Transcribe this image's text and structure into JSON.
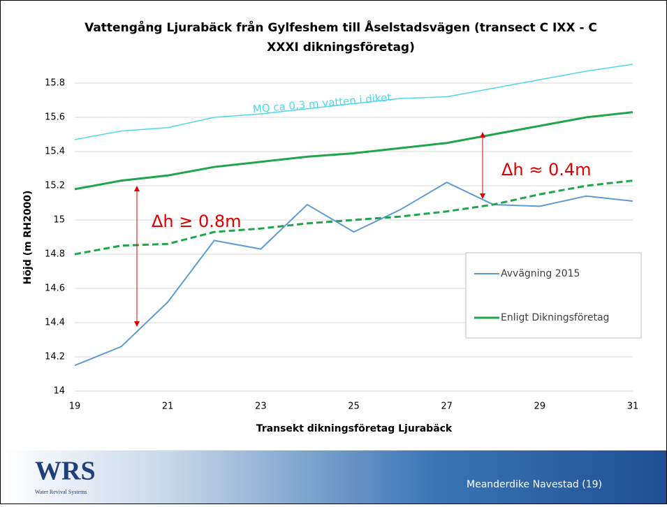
{
  "chart_data": {
    "type": "line",
    "title_lines": [
      "Vattengång Ljurabäck från Gylfeshem till Åselstadsvägen (transect C IXX - C",
      "XXXI dikningsföretag)"
    ],
    "x_label": "Transekt dikningsföretag Ljurabäck",
    "y_label": "Höjd (m RH2000)",
    "x": [
      19,
      20,
      21,
      22,
      23,
      24,
      25,
      26,
      27,
      28,
      29,
      30,
      31
    ],
    "series": [
      {
        "name": "Avvägning 2015",
        "color": "#5b9bd5",
        "width": 2,
        "values": [
          14.15,
          14.26,
          14.52,
          14.88,
          14.83,
          15.09,
          14.93,
          15.06,
          15.22,
          15.09,
          15.08,
          15.14,
          15.11
        ]
      },
      {
        "name": "Enligt Dikningsföretag",
        "color": "#1fa64c",
        "width": 3,
        "values": [
          15.18,
          15.23,
          15.26,
          15.31,
          15.34,
          15.37,
          15.39,
          15.42,
          15.45,
          15.5,
          15.55,
          15.6,
          15.63
        ]
      },
      {
        "color": "#1fa64c",
        "width": 3,
        "dashed": true,
        "values": [
          14.8,
          14.85,
          14.86,
          14.93,
          14.95,
          14.98,
          15.0,
          15.02,
          15.05,
          15.09,
          15.15,
          15.2,
          15.23
        ]
      },
      {
        "color": "#4fd8e8",
        "width": 1.5,
        "values": [
          15.47,
          15.52,
          15.54,
          15.6,
          15.62,
          15.65,
          15.68,
          15.71,
          15.72,
          15.77,
          15.82,
          15.87,
          15.91
        ]
      }
    ],
    "annotations": [
      "MQ ca 0,3 m vatten i diket",
      "Δh ≥ 0.8m",
      "Δh ≈ 0.4m"
    ],
    "xlim": [
      19,
      31
    ],
    "xticks": [
      19,
      21,
      23,
      25,
      27,
      29,
      31
    ],
    "ylim": [
      14,
      15.8
    ],
    "yticks": [
      14,
      14.2,
      14.4,
      14.6,
      14.8,
      15,
      15.2,
      15.4,
      15.6,
      15.8
    ],
    "grid": true,
    "legend": "lower right"
  },
  "footer": {
    "logo": "WRS",
    "logo_subtitle": "Water Revival Systems",
    "slide_label": "Meanderdike Navestad (19)"
  }
}
